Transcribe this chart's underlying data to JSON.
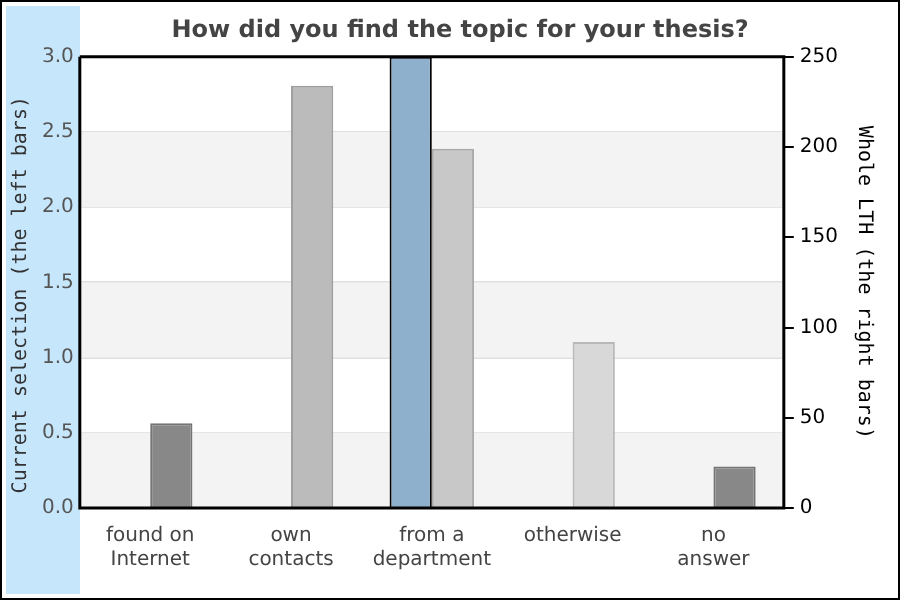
{
  "chart_data": {
    "type": "bar",
    "title": "How did you find the topic for your thesis?",
    "categories": [
      "found on\nInternet",
      "own\ncontacts",
      "from a\ndepartment",
      "otherwise",
      "no\nanswer"
    ],
    "ylabel": "Current selection (the left bars)",
    "y2label": "Whole LTH (the right bars)",
    "series": [
      {
        "color": "#8fb0cc",
        "values": [
          0,
          0,
          3,
          0,
          0
        ]
      },
      {
        "axis": "y2",
        "colors": [
          "#888888",
          "#bbbbbb",
          "#c8c8c8",
          "#d8d8d8",
          "#888888"
        ],
        "values": [
          47,
          234,
          199,
          92,
          23
        ]
      }
    ],
    "ylim": [
      0,
      3
    ],
    "yticks": [
      {
        "value": 0,
        "label": "0.0"
      },
      0.5,
      {
        "value": 1,
        "label": "1.0"
      },
      1.5,
      {
        "value": 2,
        "label": "2.0"
      },
      2.5,
      {
        "value": 3,
        "label": "3.0"
      }
    ],
    "y2lim": [
      0,
      250
    ],
    "y2ticks": [
      0,
      50,
      100,
      150,
      200,
      250
    ],
    "grid": "y",
    "legend": false
  }
}
